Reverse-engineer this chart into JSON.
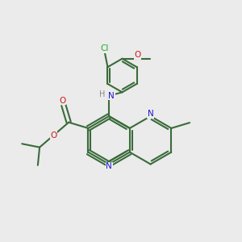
{
  "bg_color": "#ebebeb",
  "bond_color": "#3a6b3a",
  "N_color": "#1a1acc",
  "O_color": "#cc1a1a",
  "Cl_color": "#22aa22",
  "H_color": "#888888",
  "lw": 1.5,
  "figsize": [
    3.0,
    3.0
  ],
  "dpi": 100,
  "xlim": [
    0,
    10
  ],
  "ylim": [
    0,
    10
  ]
}
